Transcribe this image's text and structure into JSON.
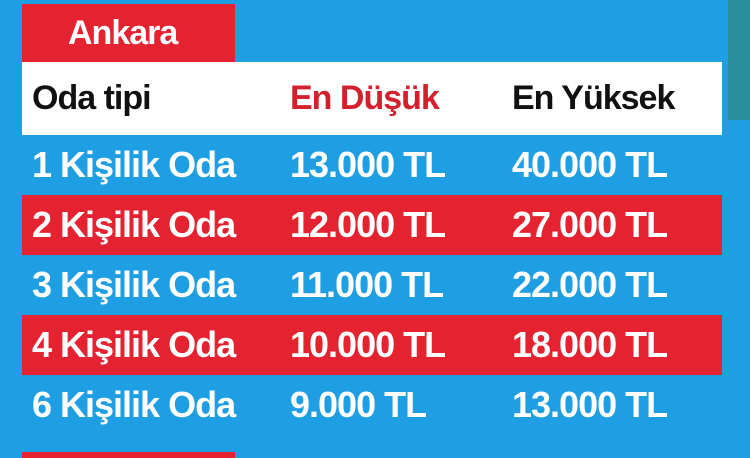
{
  "title": "Ankara",
  "table": {
    "header": [
      "Oda tipi",
      "En Düşük",
      "En Yüksek"
    ],
    "rows": [
      [
        "1 Kişilik Oda",
        "13.000 TL",
        "40.000 TL"
      ],
      [
        "2 Kişilik Oda",
        "12.000 TL",
        "27.000 TL"
      ],
      [
        "3 Kişilik Oda",
        "11.000 TL",
        "22.000 TL"
      ],
      [
        "4 Kişilik Oda",
        "10.000 TL",
        "18.000 TL"
      ],
      [
        "6 Kişilik Oda",
        "9.000 TL",
        "13.000 TL"
      ]
    ]
  }
}
